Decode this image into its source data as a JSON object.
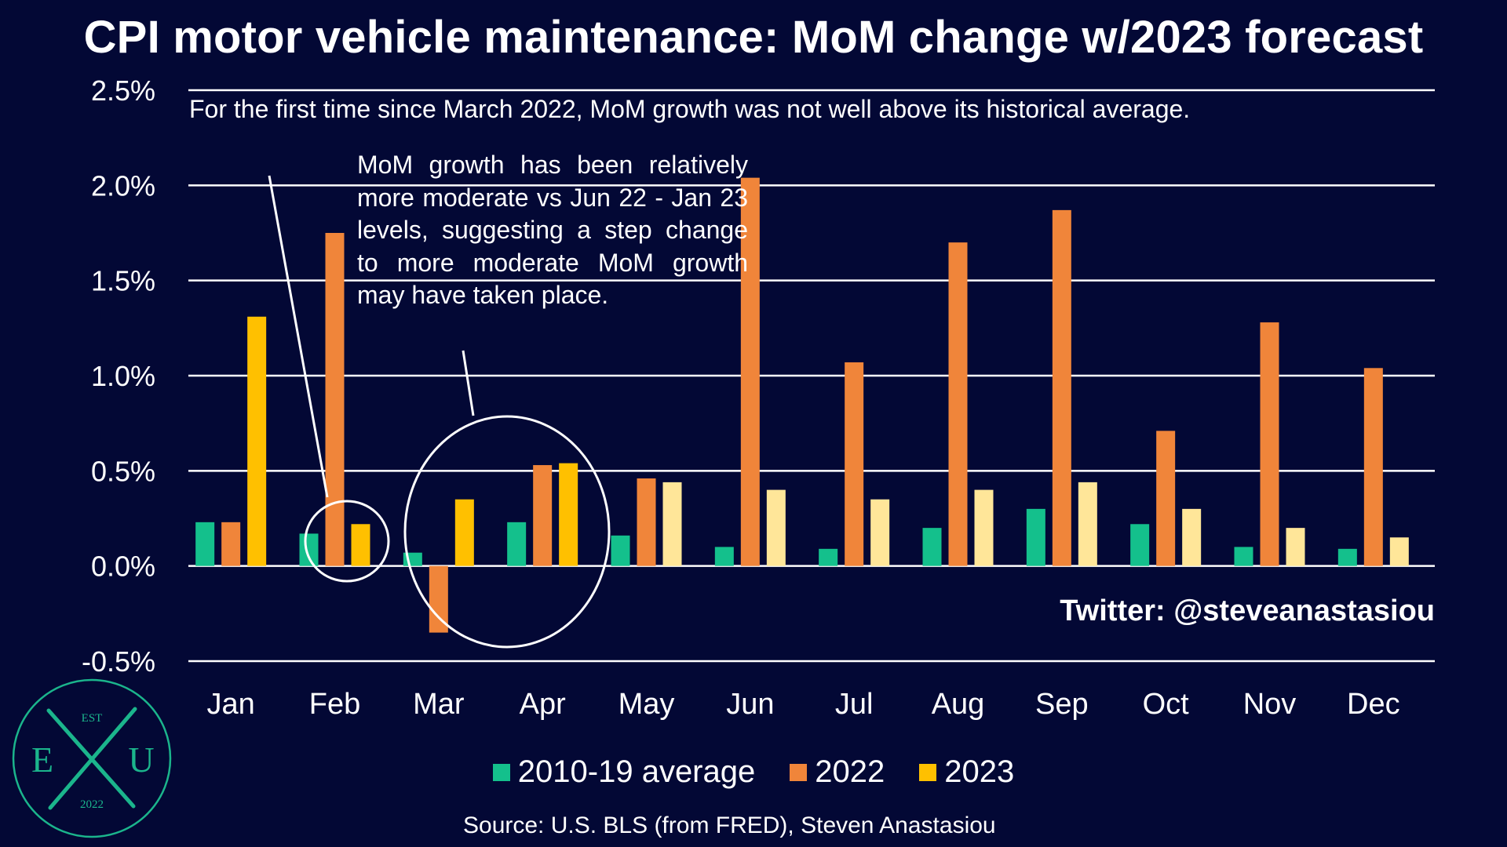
{
  "title": "CPI motor vehicle maintenance: MoM change w/2023 forecast",
  "annotations": {
    "first_time": "For the first time since March 2022, MoM growth was not well above its historical average.",
    "moderate": "MoM growth has been relatively more moderate vs Jun 22 - Jan 23 levels, suggesting a step change to more moderate MoM growth may have taken place."
  },
  "twitter": "Twitter: @steveanastasiou",
  "source": "Source: U.S. BLS (from FRED), Steven Anastasiou",
  "logo": {
    "top": "EST",
    "left": "E",
    "right": "U",
    "bottom": "2022"
  },
  "colors": {
    "background": "#030835",
    "avg": "#14C08C",
    "y2022": "#F0853A",
    "y2023": "#FFC000",
    "y2023_forecast": "#FFE699",
    "grid": "#FFFFFF",
    "logo": "#1BB58C"
  },
  "chart_data": {
    "type": "bar",
    "title": "CPI motor vehicle maintenance: MoM change w/2023 forecast",
    "categories": [
      "Jan",
      "Feb",
      "Mar",
      "Apr",
      "May",
      "Jun",
      "Jul",
      "Aug",
      "Sep",
      "Oct",
      "Nov",
      "Dec"
    ],
    "series": [
      {
        "name": "2010-19 average",
        "values": [
          0.23,
          0.17,
          0.07,
          0.23,
          0.16,
          0.1,
          0.09,
          0.2,
          0.3,
          0.22,
          0.1,
          0.09
        ]
      },
      {
        "name": "2022",
        "values": [
          0.23,
          1.75,
          -0.35,
          0.53,
          0.46,
          2.04,
          1.07,
          1.7,
          1.87,
          0.71,
          1.28,
          1.04
        ]
      },
      {
        "name": "2023",
        "values": [
          1.31,
          0.22,
          0.35,
          0.54,
          0.44,
          0.4,
          0.35,
          0.4,
          0.44,
          0.3,
          0.2,
          0.15
        ],
        "actual_months": 4
      }
    ],
    "ylim": [
      -0.5,
      2.5
    ],
    "yticks": [
      -0.5,
      0.0,
      0.5,
      1.0,
      1.5,
      2.0,
      2.5
    ],
    "ytick_labels": [
      "-0.5%",
      "0.0%",
      "0.5%",
      "1.0%",
      "1.5%",
      "2.0%",
      "2.5%"
    ],
    "xlabel": "",
    "ylabel": "",
    "grid": true,
    "legend": "bottom-center"
  }
}
